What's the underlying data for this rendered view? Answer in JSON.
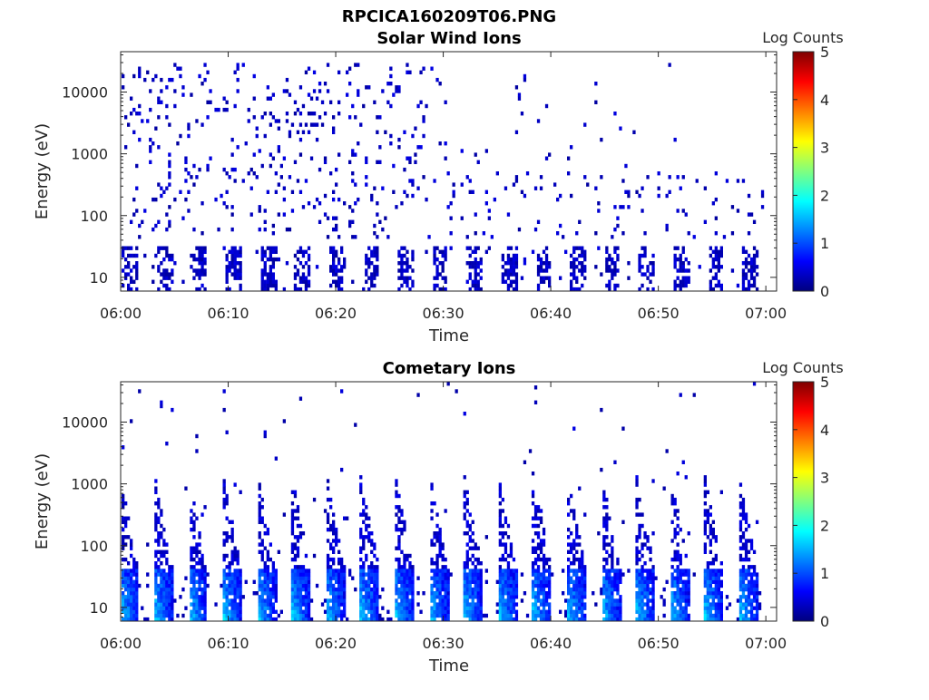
{
  "figure_title": "RPCICA160209T06.PNG",
  "chart_data": [
    {
      "type": "heatmap",
      "title": "Solar Wind Ions",
      "xlabel": "Time",
      "ylabel": "Energy (eV)",
      "y_scale": "log",
      "x_range": [
        "06:00",
        "07:01"
      ],
      "y_range": [
        6,
        45000
      ],
      "x_ticks": [
        "06:00",
        "06:10",
        "06:20",
        "06:30",
        "06:40",
        "06:50",
        "07:00"
      ],
      "y_ticks": [
        "10",
        "100",
        "1000",
        "10000"
      ],
      "colorbar": {
        "label": "Log Counts",
        "range": [
          0,
          5
        ],
        "ticks": [
          "0",
          "1",
          "2",
          "3",
          "4",
          "5"
        ],
        "colormap": "jet"
      },
      "dominant_level": 0.2,
      "description_of_populations": "Sparse scattered low-count pixels (level ~0-0.5) from 10 to 30000 eV; denser bursts at 10-30 eV roughly every 3 minutes"
    },
    {
      "type": "heatmap",
      "title": "Cometary Ions",
      "xlabel": "Time",
      "ylabel": "Energy (eV)",
      "y_scale": "log",
      "x_range": [
        "06:00",
        "07:01"
      ],
      "y_range": [
        6,
        45000
      ],
      "x_ticks": [
        "06:00",
        "06:10",
        "06:20",
        "06:30",
        "06:40",
        "06:50",
        "07:00"
      ],
      "y_ticks": [
        "10",
        "100",
        "1000",
        "10000"
      ],
      "colorbar": {
        "label": "Log Counts",
        "range": [
          0,
          5
        ],
        "ticks": [
          "0",
          "1",
          "2",
          "3",
          "4",
          "5"
        ],
        "colormap": "jet"
      },
      "burst_period_minutes": 3.2,
      "burst_peak_level": 2.0,
      "burst_core_energy_eV": [
        6,
        40
      ]
    }
  ]
}
